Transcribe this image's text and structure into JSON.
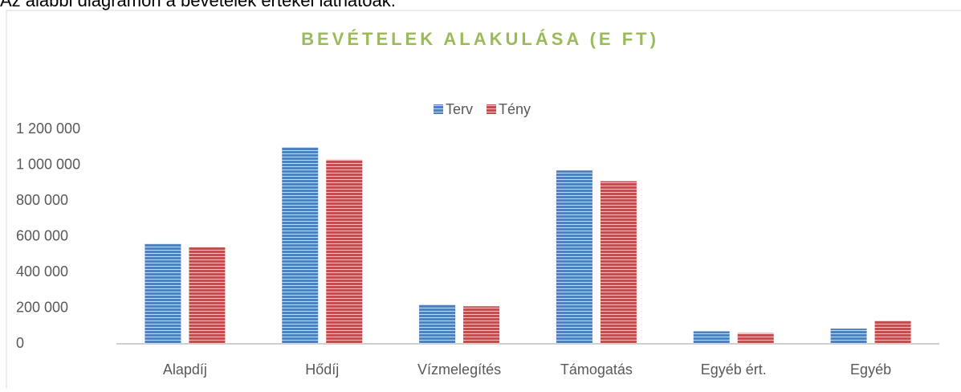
{
  "intro": "Az alábbi diagramon a bevételek értékei láthatóak.",
  "chart_data": {
    "type": "bar",
    "title": "BEVÉTELEK ALAKULÁSA (E FT)",
    "categories": [
      "Alapdíj",
      "Hődíj",
      "Vízmelegítés",
      "Támogatás",
      "Egyéb ért.",
      "Egyéb"
    ],
    "series": [
      {
        "name": "Terv",
        "color": "#4f81bd",
        "values": [
          560000,
          1100000,
          220000,
          970000,
          70000,
          85000
        ]
      },
      {
        "name": "Tény",
        "color": "#c0504d",
        "values": [
          540000,
          1030000,
          210000,
          910000,
          60000,
          130000
        ]
      }
    ],
    "ylim": [
      0,
      1200000
    ],
    "yticks": [
      0,
      {
        "value": 200000,
        "label": "200 000"
      },
      {
        "value": 400000,
        "label": "400 000"
      },
      {
        "value": 600000,
        "label": "600 000"
      },
      {
        "value": 800000,
        "label": "800 000"
      },
      {
        "value": 1000000,
        "label": "1 000 000"
      },
      {
        "value": 1200000,
        "label": "1 200 000"
      }
    ],
    "grid": false,
    "legend": "top"
  }
}
